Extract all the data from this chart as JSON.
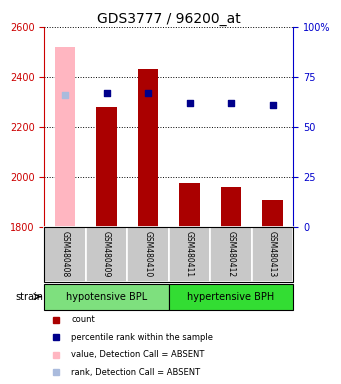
{
  "title": "GDS3777 / 96200_at",
  "samples": [
    "GSM480408",
    "GSM480409",
    "GSM480410",
    "GSM480411",
    "GSM480412",
    "GSM480413"
  ],
  "bar_values": [
    null,
    2280,
    2430,
    1975,
    1960,
    1905
  ],
  "bar_absent_values": [
    2520,
    null,
    null,
    null,
    null,
    null
  ],
  "dot_values": [
    null,
    67,
    67,
    62,
    62,
    61
  ],
  "dot_absent_values": [
    66,
    null,
    null,
    null,
    null,
    null
  ],
  "ylim_left": [
    1800,
    2600
  ],
  "ylim_right": [
    0,
    100
  ],
  "yticks_left": [
    1800,
    2000,
    2200,
    2400,
    2600
  ],
  "yticks_right": [
    0,
    25,
    50,
    75,
    100
  ],
  "groups": [
    {
      "label": "hypotensive BPL",
      "color": "#7EE07E"
    },
    {
      "label": "hypertensive BPH",
      "color": "#33DD33"
    }
  ],
  "bar_color": "#AA0000",
  "bar_absent_color": "#FFB6C1",
  "dot_color": "#00008B",
  "dot_absent_color": "#AABBDD",
  "bg_color": "#C8C8C8",
  "plot_bg": "#FFFFFF",
  "left_axis_color": "#CC0000",
  "right_axis_color": "#0000CC",
  "bar_width": 0.5,
  "dot_size": 25,
  "legend_items": [
    {
      "color": "#AA0000",
      "label": "count"
    },
    {
      "color": "#00008B",
      "label": "percentile rank within the sample"
    },
    {
      "color": "#FFB6C1",
      "label": "value, Detection Call = ABSENT"
    },
    {
      "color": "#AABBDD",
      "label": "rank, Detection Call = ABSENT"
    }
  ]
}
